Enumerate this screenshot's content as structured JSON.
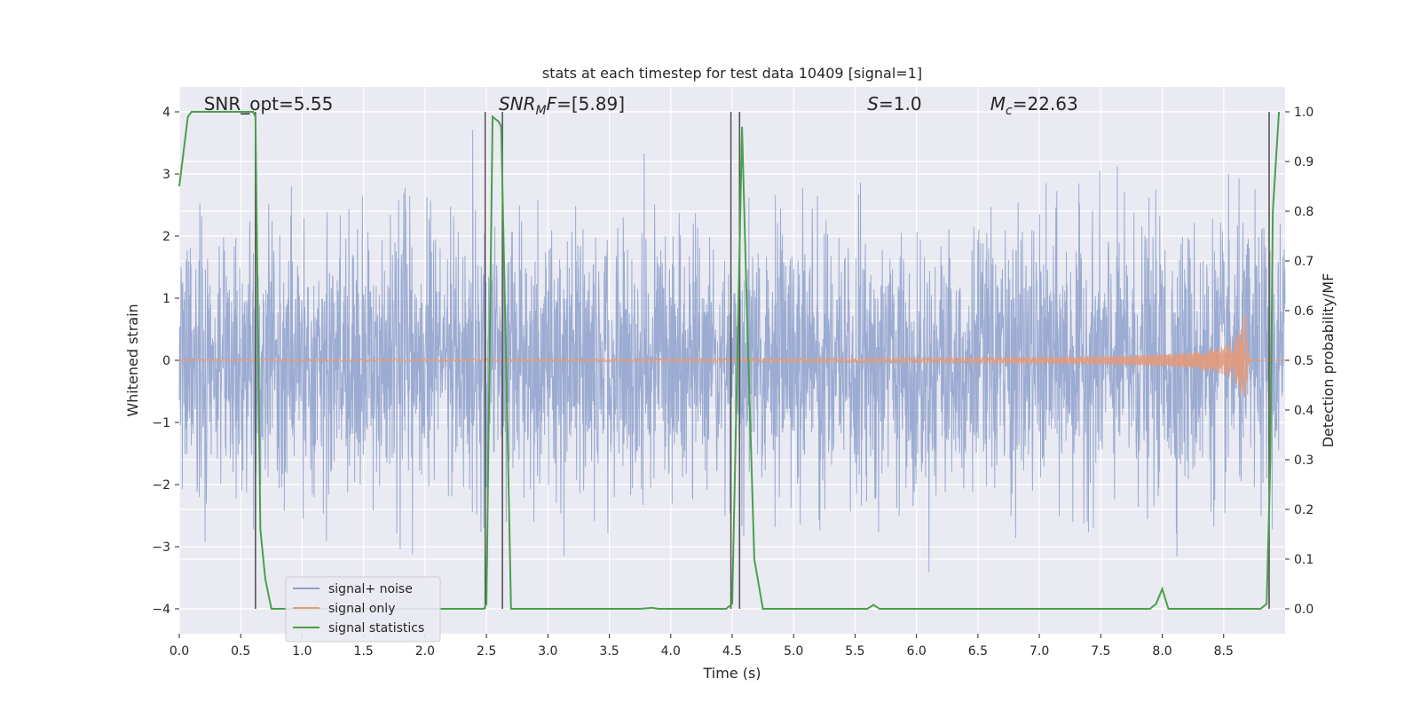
{
  "chart_data": {
    "type": "line",
    "title": "stats at each timestep for test data 10409 [signal=1]",
    "xlabel": "Time (s)",
    "ylabel": "Whitened strain",
    "y2label": "Detection probability/MF",
    "xlim": [
      0,
      9.0
    ],
    "ylim": [
      -4.4,
      4.4
    ],
    "y2lim": [
      -0.05,
      1.05
    ],
    "xticks": [
      "0.0",
      "0.5",
      "1.0",
      "1.5",
      "2.0",
      "2.5",
      "3.0",
      "3.5",
      "4.0",
      "4.5",
      "5.0",
      "5.5",
      "6.0",
      "6.5",
      "7.0",
      "7.5",
      "8.0",
      "8.5"
    ],
    "yticks": [
      "−4",
      "−3",
      "−2",
      "−1",
      "0",
      "1",
      "2",
      "3",
      "4"
    ],
    "y2ticks": [
      "0.0",
      "0.1",
      "0.2",
      "0.3",
      "0.4",
      "0.5",
      "0.6",
      "0.7",
      "0.8",
      "0.9",
      "1.0"
    ],
    "grid": true,
    "legend": "lower-left",
    "series": [
      {
        "name": "signal+ noise",
        "color": "#8da0cb",
        "description_kind": "noise",
        "envelope_amplitude": 1.5,
        "spike_max": 4.0
      },
      {
        "name": "signal only",
        "color": "#e39a7a",
        "description_kind": "chirp",
        "t_merger": 8.68,
        "peak_amplitude": 1.2
      },
      {
        "name": "signal statistics",
        "color": "#4aa04a",
        "axis": "right",
        "x": [
          0.0,
          0.07,
          0.1,
          0.2,
          0.3,
          0.4,
          0.5,
          0.55,
          0.6,
          0.62,
          0.66,
          0.7,
          0.75,
          2.45,
          2.48,
          2.5,
          2.55,
          2.6,
          2.62,
          2.66,
          2.7,
          3.75,
          3.85,
          3.9,
          4.45,
          4.5,
          4.55,
          4.58,
          4.62,
          4.68,
          4.75,
          5.6,
          5.65,
          5.7,
          7.9,
          7.95,
          8.0,
          8.05,
          8.1,
          8.8,
          8.85,
          8.88,
          8.9,
          8.95
        ],
        "y": [
          0.85,
          0.99,
          1.0,
          1.0,
          1.0,
          1.0,
          1.0,
          1.0,
          1.0,
          0.99,
          0.16,
          0.06,
          0.0,
          0.0,
          0.0,
          0.01,
          0.99,
          0.98,
          0.97,
          0.5,
          0.0,
          0.0,
          0.002,
          0.0,
          0.0,
          0.01,
          0.6,
          0.97,
          0.6,
          0.1,
          0.0,
          0.0,
          0.008,
          0.0,
          0.0,
          0.01,
          0.04,
          0.0,
          0.0,
          0.0,
          0.01,
          0.3,
          0.8,
          1.0
        ]
      }
    ],
    "vlines": [
      0.62,
      2.49,
      2.63,
      4.49,
      4.56,
      8.87
    ],
    "annotations": [
      {
        "text": "SNR_opt=5.55",
        "x": 0.2
      },
      {
        "text_parts": [
          {
            "t": "SNR",
            "i": true
          },
          {
            "t": "M",
            "i": true,
            "sub": true
          },
          {
            "t": "F",
            "i": true
          },
          {
            "t": "=[5.89]",
            "i": false
          }
        ],
        "x": 2.6
      },
      {
        "text_parts": [
          {
            "t": "S",
            "i": true
          },
          {
            "t": "=1.0",
            "i": false
          }
        ],
        "x": 5.6
      },
      {
        "text_parts": [
          {
            "t": "M",
            "i": true
          },
          {
            "t": "c",
            "i": true,
            "sub": true
          },
          {
            "t": "=22.63",
            "i": false
          }
        ],
        "x": 6.6
      }
    ]
  }
}
